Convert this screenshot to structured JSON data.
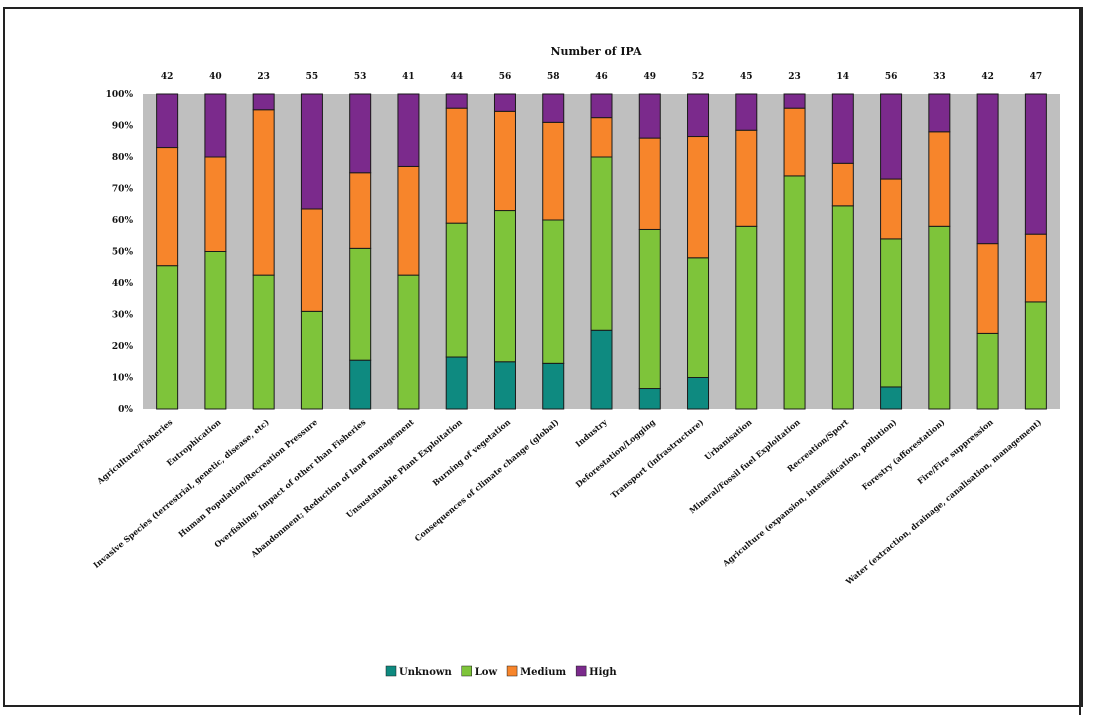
{
  "chart_data": {
    "type": "bar",
    "stacked": true,
    "normalized": true,
    "title": "Number of IPA",
    "ylim": [
      0,
      100
    ],
    "y_ticks": [
      "0%",
      "10%",
      "20%",
      "30%",
      "40%",
      "50%",
      "60%",
      "70%",
      "80%",
      "90%",
      "100%"
    ],
    "legend_position": "bottom",
    "grid": false,
    "plot_background": "#bfbfbf",
    "categories": [
      "Agriculture/Fisheries",
      "Eutrophication",
      "Invasive Species (terrestrial, genetic, disease, etc)",
      "Human Population/Recreation Pressure",
      "Overfishing; Impact of other than Fisheries",
      "Abandonment; Reduction of land management",
      "Unsustainable Plant Exploitation",
      "Burning of vegetation",
      "Consequences of climate change (global)",
      "Industry",
      "Deforestation/Logging",
      "Transport (infrastructure)",
      "Urbanisation",
      "Mineral/Fossil fuel Exploitation",
      "Recreation/Sport",
      "Agriculture (expansion, intensification, pollution)",
      "Forestry (afforestation)",
      "Fire/Fire suppression",
      "Water (extraction, drainage, canalisation, management)"
    ],
    "counts": [
      42,
      40,
      23,
      55,
      53,
      41,
      44,
      56,
      58,
      46,
      49,
      52,
      45,
      23,
      14,
      56,
      33,
      42,
      47
    ],
    "series": [
      {
        "name": "Unknown",
        "color": "#0e8a80",
        "values": [
          0,
          0,
          0,
          0,
          15.5,
          0,
          16.5,
          15,
          14.5,
          25,
          6.5,
          10,
          0,
          0,
          0,
          7,
          0,
          0,
          0
        ]
      },
      {
        "name": "Low",
        "color": "#7ec43a",
        "values": [
          45.5,
          50,
          42.5,
          31,
          35.5,
          42.5,
          42.5,
          48,
          45.5,
          55,
          50.5,
          38,
          58,
          74,
          64.5,
          47,
          58,
          24,
          34
        ]
      },
      {
        "name": "Medium",
        "color": "#f7852b",
        "values": [
          37.5,
          30,
          52.5,
          32.5,
          24,
          34.5,
          36.5,
          31.5,
          31,
          12.5,
          29,
          38.5,
          30.5,
          21.5,
          13.5,
          19,
          30,
          28.5,
          21.5
        ]
      },
      {
        "name": "High",
        "color": "#7b2a8c",
        "values": [
          17,
          20,
          5,
          36.5,
          25,
          23,
          4.5,
          5.5,
          9,
          7.5,
          14,
          13.5,
          11.5,
          4.5,
          22,
          27,
          12,
          47.5,
          44.5
        ]
      }
    ]
  }
}
